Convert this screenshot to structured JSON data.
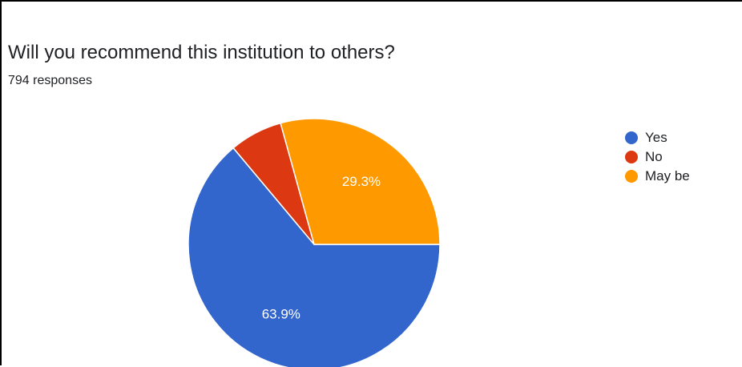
{
  "chart_data": {
    "type": "pie",
    "title": "Will you recommend this institution to others?",
    "subtitle": "794 responses",
    "slices": [
      {
        "label": "Yes",
        "value": 63.9,
        "color": "#3366cc",
        "data_label": "63.9%"
      },
      {
        "label": "No",
        "value": 6.8,
        "color": "#dc3912",
        "data_label": ""
      },
      {
        "label": "May be",
        "value": 29.3,
        "color": "#ff9900",
        "data_label": "29.3%"
      }
    ],
    "legend_position": "right"
  }
}
